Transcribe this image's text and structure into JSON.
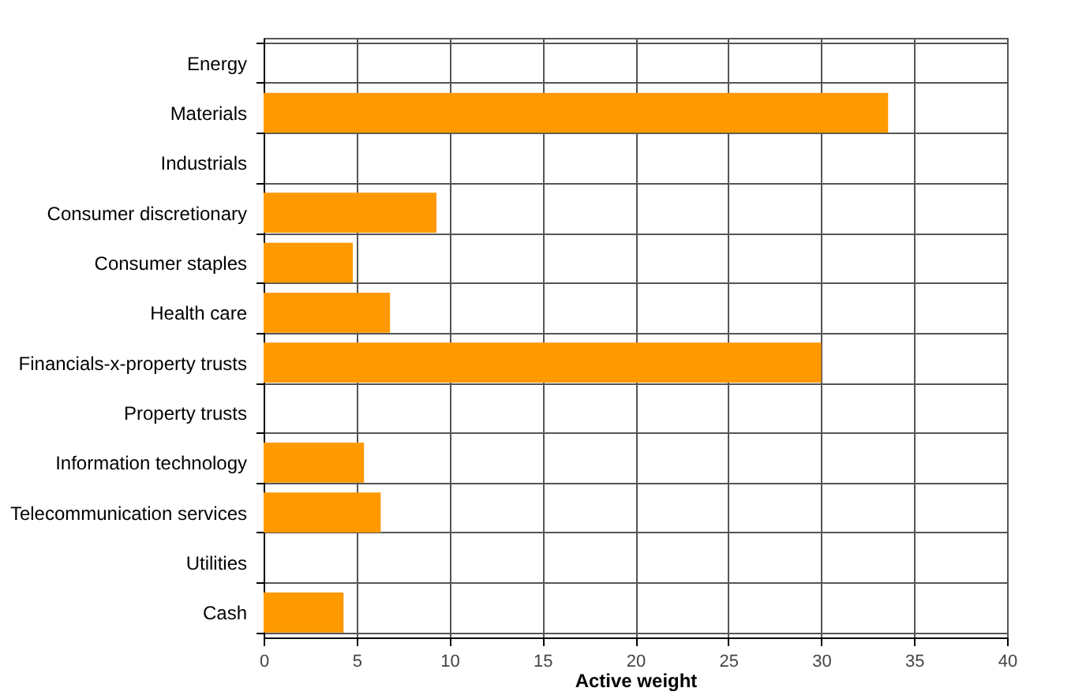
{
  "chart_data": {
    "type": "bar",
    "orientation": "horizontal",
    "xlabel": "Active weight",
    "categories": [
      "Energy",
      "Materials",
      "Industrials",
      "Consumer discretionary",
      "Consumer staples",
      "Health care",
      "Financials-x-property trusts",
      "Property trusts",
      "Information technology",
      "Telecommunication services",
      "Utilities",
      "Cash"
    ],
    "values": [
      0,
      33.6,
      0,
      9.3,
      4.8,
      6.8,
      30.0,
      0,
      5.4,
      6.3,
      0,
      4.3
    ],
    "color": "#ff9900",
    "xlim": [
      0,
      40
    ],
    "xticks": [
      0,
      5,
      10,
      15,
      20,
      25,
      30,
      35,
      40
    ],
    "grid": true
  }
}
